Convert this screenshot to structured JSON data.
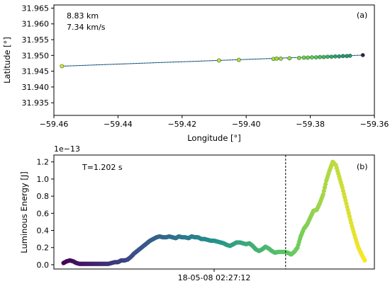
{
  "colors": {
    "line": "#1f77b4",
    "vline": "#000000",
    "frame": "#000000"
  },
  "chart_data": [
    {
      "id": "a",
      "type": "scatter",
      "panel_label": "(a)",
      "xlabel": "Longitude [°]",
      "ylabel": "Latitude [°]",
      "xlim": [
        -59.46,
        -59.36
      ],
      "ylim": [
        31.931,
        31.966
      ],
      "xticks": [
        -59.46,
        -59.44,
        -59.42,
        -59.4,
        -59.38,
        -59.36
      ],
      "xtick_labels": [
        "−59.46",
        "−59.44",
        "−59.42",
        "−59.40",
        "−59.38",
        "−59.36"
      ],
      "yticks": [
        31.935,
        31.94,
        31.945,
        31.95,
        31.955,
        31.96,
        31.965
      ],
      "ytick_labels": [
        "31.935",
        "31.940",
        "31.945",
        "31.950",
        "31.955",
        "31.960",
        "31.965"
      ],
      "annotations": [
        "8.83 km",
        "7.34 km/s"
      ],
      "grid": false,
      "line_start": [
        -59.4575,
        31.9466
      ],
      "line_end": [
        -59.3635,
        31.9501
      ],
      "points": [
        {
          "x": -59.4575,
          "y": 31.9466,
          "c": 0.95
        },
        {
          "x": -59.4085,
          "y": 31.9484,
          "c": 0.92
        },
        {
          "x": -59.4023,
          "y": 31.9486,
          "c": 0.9
        },
        {
          "x": -59.3915,
          "y": 31.9489,
          "c": 0.88
        },
        {
          "x": -59.3905,
          "y": 31.949,
          "c": 0.87
        },
        {
          "x": -59.3892,
          "y": 31.949,
          "c": 0.86
        },
        {
          "x": -59.3865,
          "y": 31.9491,
          "c": 0.84
        },
        {
          "x": -59.3835,
          "y": 31.9492,
          "c": 0.82
        },
        {
          "x": -59.382,
          "y": 31.9493,
          "c": 0.8
        },
        {
          "x": -59.3808,
          "y": 31.9493,
          "c": 0.78
        },
        {
          "x": -59.3795,
          "y": 31.9494,
          "c": 0.76
        },
        {
          "x": -59.3782,
          "y": 31.9494,
          "c": 0.74
        },
        {
          "x": -59.377,
          "y": 31.9495,
          "c": 0.7
        },
        {
          "x": -59.3758,
          "y": 31.9495,
          "c": 0.66
        },
        {
          "x": -59.3746,
          "y": 31.9496,
          "c": 0.62
        },
        {
          "x": -59.3734,
          "y": 31.9496,
          "c": 0.58
        },
        {
          "x": -59.3722,
          "y": 31.9497,
          "c": 0.55
        },
        {
          "x": -59.371,
          "y": 31.9497,
          "c": 0.52
        },
        {
          "x": -59.3698,
          "y": 31.9498,
          "c": 0.5
        },
        {
          "x": -59.3686,
          "y": 31.9498,
          "c": 0.5
        },
        {
          "x": -59.3676,
          "y": 31.9499,
          "c": 0.52
        },
        {
          "x": -59.3636,
          "y": 31.9501,
          "c": 0.05
        }
      ]
    },
    {
      "id": "b",
      "type": "scatter",
      "panel_label": "(b)",
      "ylabel": "Luminous Energy [J]",
      "scale_label": "1e−13",
      "annotation": "T=1.202 s",
      "xtick_label": "18-05-08 02:27:12",
      "xlim": [
        0,
        1
      ],
      "ylim": [
        -0.05,
        1.28
      ],
      "yticks": [
        0.0,
        0.2,
        0.4,
        0.6,
        0.8,
        1.0,
        1.2
      ],
      "ytick_labels": [
        "0.0",
        "0.2",
        "0.4",
        "0.6",
        "0.8",
        "1.0",
        "1.2"
      ],
      "xtick_at": 0.5,
      "vline_at": 0.723,
      "grid": false,
      "series": [
        {
          "x": [
            0.03,
            0.04,
            0.05,
            0.06,
            0.07,
            0.08,
            0.09,
            0.1,
            0.11,
            0.12,
            0.13,
            0.14,
            0.15,
            0.16,
            0.17,
            0.18,
            0.19,
            0.2,
            0.21,
            0.22,
            0.23,
            0.24,
            0.25,
            0.26,
            0.27,
            0.28,
            0.29,
            0.3,
            0.31,
            0.32,
            0.33,
            0.34,
            0.35,
            0.36,
            0.37,
            0.38,
            0.39,
            0.4,
            0.41,
            0.42,
            0.43,
            0.44,
            0.45,
            0.46,
            0.47,
            0.48,
            0.49,
            0.5,
            0.51,
            0.52,
            0.53,
            0.54,
            0.55,
            0.56,
            0.57,
            0.58,
            0.59,
            0.6,
            0.61,
            0.62,
            0.63,
            0.64,
            0.65,
            0.66,
            0.67,
            0.68,
            0.69,
            0.7,
            0.71,
            0.72,
            0.73,
            0.74,
            0.75,
            0.76,
            0.77,
            0.78,
            0.79,
            0.8,
            0.81,
            0.82,
            0.83,
            0.84,
            0.85,
            0.86,
            0.87,
            0.88,
            0.89,
            0.9,
            0.91,
            0.92,
            0.93,
            0.94,
            0.95,
            0.96,
            0.97
          ],
          "y": [
            0.02,
            0.04,
            0.05,
            0.04,
            0.02,
            0.01,
            0.01,
            0.01,
            0.01,
            0.01,
            0.01,
            0.01,
            0.01,
            0.01,
            0.01,
            0.02,
            0.03,
            0.03,
            0.05,
            0.05,
            0.06,
            0.09,
            0.13,
            0.16,
            0.19,
            0.22,
            0.25,
            0.28,
            0.3,
            0.32,
            0.33,
            0.32,
            0.32,
            0.33,
            0.32,
            0.31,
            0.33,
            0.32,
            0.32,
            0.31,
            0.33,
            0.32,
            0.32,
            0.3,
            0.3,
            0.29,
            0.28,
            0.28,
            0.27,
            0.26,
            0.25,
            0.23,
            0.22,
            0.24,
            0.26,
            0.26,
            0.25,
            0.24,
            0.25,
            0.22,
            0.18,
            0.16,
            0.18,
            0.21,
            0.19,
            0.16,
            0.14,
            0.15,
            0.15,
            0.15,
            0.14,
            0.12,
            0.15,
            0.2,
            0.33,
            0.42,
            0.47,
            0.55,
            0.63,
            0.64,
            0.72,
            0.82,
            0.98,
            1.1,
            1.2,
            1.16,
            1.03,
            0.9,
            0.75,
            0.6,
            0.45,
            0.32,
            0.2,
            0.12,
            0.05
          ]
        }
      ]
    }
  ]
}
